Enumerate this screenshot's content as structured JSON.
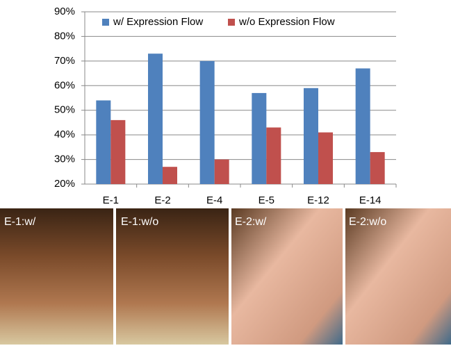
{
  "chart_data": {
    "type": "bar",
    "categories": [
      "E-1",
      "E-2",
      "E-4",
      "E-5",
      "E-12",
      "E-14"
    ],
    "series": [
      {
        "name": "w/ Expression Flow",
        "color": "#4f81bd",
        "values": [
          54,
          73,
          70,
          57,
          59,
          67
        ]
      },
      {
        "name": "w/o Expression Flow",
        "color": "#c0504d",
        "values": [
          46,
          27,
          30,
          43,
          41,
          33
        ]
      }
    ],
    "ylim": [
      20,
      90
    ],
    "yticks": [
      {
        "value": 20,
        "label": "20%"
      },
      {
        "value": 30,
        "label": "30%"
      },
      {
        "value": 40,
        "label": "40%"
      },
      {
        "value": 50,
        "label": "50%"
      },
      {
        "value": 60,
        "label": "60%"
      },
      {
        "value": 70,
        "label": "70%"
      },
      {
        "value": 80,
        "label": "80%"
      },
      {
        "value": 90,
        "label": "90%"
      }
    ],
    "grid": true
  },
  "panels": [
    "E-1:w/",
    "E-1:w/o",
    "E-2:w/",
    "E-2:w/o"
  ]
}
